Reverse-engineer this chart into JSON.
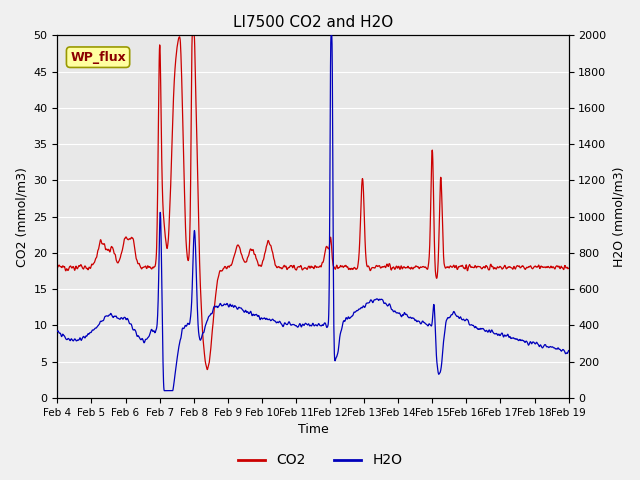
{
  "title": "LI7500 CO2 and H2O",
  "xlabel": "Time",
  "ylabel_left": "CO2 (mmol/m3)",
  "ylabel_right": "H2O (mmol/m3)",
  "xlim": [
    0,
    15
  ],
  "ylim_left": [
    0,
    50
  ],
  "ylim_right": [
    0,
    2000
  ],
  "xtick_labels": [
    "Feb 4",
    "Feb 5",
    "Feb 6",
    "Feb 7",
    "Feb 8",
    "Feb 9",
    "Feb 10",
    "Feb 11",
    "Feb 12",
    "Feb 13",
    "Feb 14",
    "Feb 15",
    "Feb 16",
    "Feb 17",
    "Feb 18",
    "Feb 19"
  ],
  "xtick_positions": [
    0,
    1,
    2,
    3,
    4,
    5,
    6,
    7,
    8,
    9,
    10,
    11,
    12,
    13,
    14,
    15
  ],
  "co2_color": "#CC0000",
  "h2o_color": "#0000BB",
  "background_color": "#F0F0F0",
  "axes_facecolor": "#E8E8E8",
  "grid_color": "#FFFFFF",
  "annotation_text": "WP_flux",
  "annotation_box_color": "#FFFFA0",
  "annotation_border_color": "#999900",
  "legend_co2": "CO2",
  "legend_h2o": "H2O",
  "title_fontsize": 11,
  "axis_label_fontsize": 9,
  "tick_fontsize": 8
}
